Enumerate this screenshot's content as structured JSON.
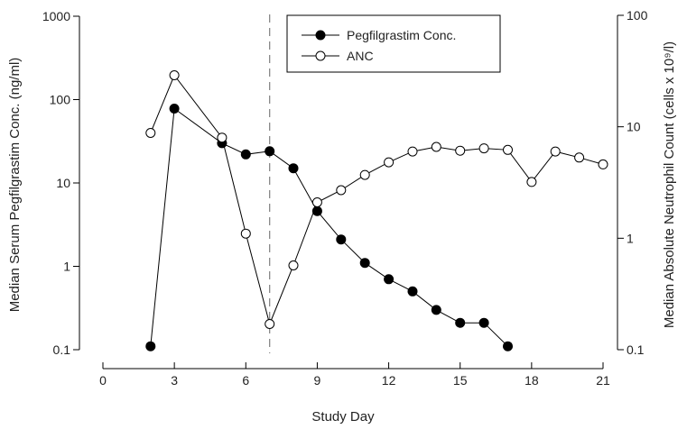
{
  "chart_data": {
    "type": "line",
    "xlabel": "Study Day",
    "ylabel_left": "Median Serum Pegfilgrastim Conc. (ng/ml)",
    "ylabel_right": "Median Absolute Neutrophil Count (cells x 10⁹/l)",
    "xlim": [
      0,
      21
    ],
    "xticks": [
      "0",
      "3",
      "6",
      "9",
      "12",
      "15",
      "18",
      "21"
    ],
    "ylim_left": [
      0.1,
      1000
    ],
    "yticks_left": [
      "0.1",
      "1",
      "10",
      "100",
      "1000"
    ],
    "ylim_right": [
      0.1,
      100
    ],
    "yticks_right": [
      "0.1",
      "1",
      "10",
      "100"
    ],
    "yscale": "log",
    "reference_line_x": 7,
    "legend_position": "top-center",
    "series": [
      {
        "name": "Pegfilgrastim Conc.",
        "axis": "left",
        "marker": "filled-circle",
        "color": "#000000",
        "x": [
          2,
          3,
          5,
          6,
          7,
          8,
          9,
          10,
          11,
          12,
          13,
          14,
          15,
          16,
          17
        ],
        "y": [
          0.11,
          78,
          30,
          22,
          24,
          15,
          4.6,
          2.1,
          1.1,
          0.7,
          0.5,
          0.3,
          0.21,
          0.21,
          0.11
        ]
      },
      {
        "name": "ANC",
        "axis": "right",
        "marker": "open-circle",
        "color": "#000000",
        "x": [
          2,
          3,
          5,
          6,
          7,
          8,
          9,
          10,
          11,
          12,
          13,
          14,
          15,
          16,
          17,
          18,
          19,
          20,
          21
        ],
        "y": [
          8.8,
          29,
          8,
          1.1,
          0.17,
          0.57,
          2.1,
          2.7,
          3.7,
          4.8,
          6,
          6.6,
          6.1,
          6.4,
          6.2,
          3.2,
          6,
          5.3,
          4.6
        ]
      }
    ]
  }
}
